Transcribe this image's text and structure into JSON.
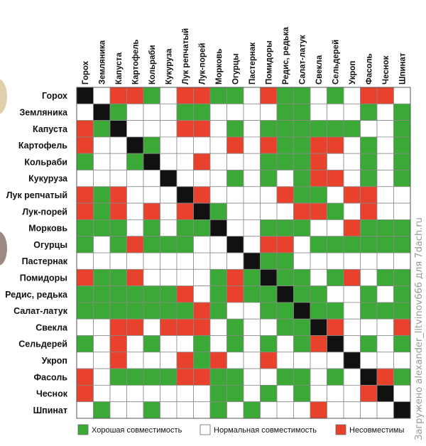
{
  "chart_data": {
    "type": "heatmap",
    "columns": [
      "Горох",
      "Земляника",
      "Капуста",
      "Картофель",
      "Кольраби",
      "Кукуруза",
      "Лук репчатый",
      "Лук-порей",
      "Морковь",
      "Огурцы",
      "Пастернак",
      "Помидоры",
      "Редис, редька",
      "Салат-латук",
      "Свекла",
      "Сельдерей",
      "Укроп",
      "Фасоль",
      "Чеснок",
      "Шпинат"
    ],
    "rows": [
      "Горох",
      "Земляника",
      "Капуста",
      "Картофель",
      "Кольраби",
      "Кукуруза",
      "Лук репчатый",
      "Лук-порей",
      "Морковь",
      "Огурцы",
      "Пастернак",
      "Помидоры",
      "Редис, редька",
      "Салат-латук",
      "Свекла",
      "Сельдерей",
      "Укроп",
      "Фасоль",
      "Чеснок",
      "Шпинат"
    ],
    "cell_codes": {
      "G": "good",
      "N": "normal",
      "B": "incompatible",
      "X": "self"
    },
    "cells": [
      "XNBBGNBBGGNBGGNGNBBN",
      "NXGNNNGGNNNNGGNNNGNG",
      "BGXNNNBBNGNGGGGGGNNG",
      "BNNXGNNNNBNBGGBBNGNG",
      "GNNGXNNBNNNGGGBNNGNG",
      "NNNNNXNNNGNGNGBBNGNG",
      "BGBNNNXBNNNNBGGNBBNN",
      "BGBNBNBXGNNNNBBGNBNN",
      "GGGNGNGGXNNGGGNNBGGG",
      "GNGBGGGNNXNBBNGGGGGG",
      "NNNNNNNNNNXGGNNNNNNN",
      "BGGBNNNNGBGXGGNGBNGG",
      "GGGGGGBNGBGGXGGNNGNG",
      "GGGGGGGBGNNGGXGGNGGG",
      "NNBBNBBBNGNNGGXBNNNB",
      "GNBNGNNGNGNGNGBXNGNG",
      "NNBNNNBGBNNBNNNNXNNN",
      "BNGGGGBBGGNNGGNGNXBG",
      "BNNNNNNNGGNGNGNNNBXN",
      "NGNNGNNNGNGNNNBNNNNX"
    ],
    "legend": [
      {
        "code": "G",
        "label": "Хорошая совместимость",
        "color": "#3aa935"
      },
      {
        "code": "N",
        "label": "Нормальная совместимость",
        "color": "#ffffff"
      },
      {
        "code": "B",
        "label": "Несовместимы",
        "color": "#e8412c"
      }
    ],
    "diagonal_color": "#111111"
  },
  "watermark": "Загружено alexander_litvinov666 для 7dach.ru"
}
